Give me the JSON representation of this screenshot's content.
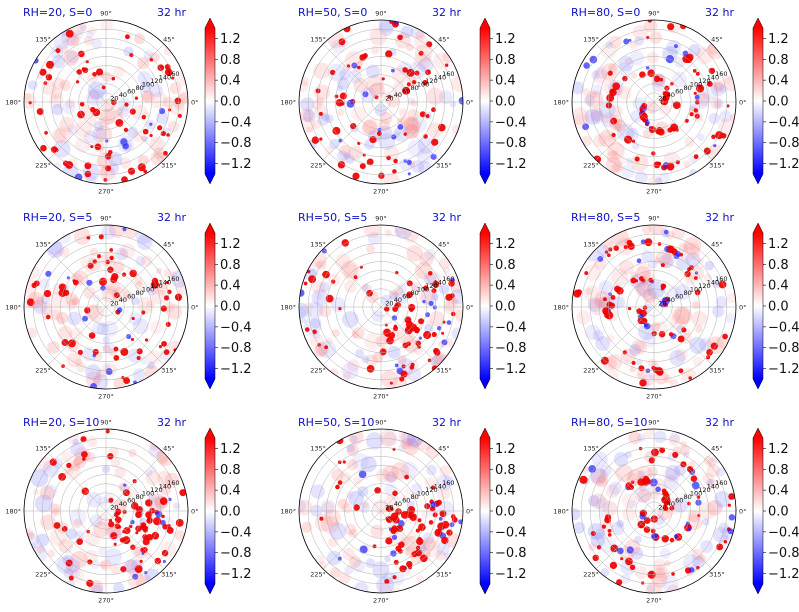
{
  "chart_data": {
    "type": "polar heatmap",
    "colormap": "bwr",
    "colors": {
      "positive": "#ff0000",
      "neutral": "#ffffff",
      "negative": "#0000ff",
      "title": "#1010c8"
    },
    "grid": true,
    "angle_tick_labels": [
      "0°",
      "45°",
      "90°",
      "135°",
      "180°",
      "225°",
      "270°",
      "315°"
    ],
    "radial_tick_labels": [
      "20",
      "40",
      "60",
      "80",
      "100",
      "120",
      "140",
      "160"
    ],
    "radial_range": [
      0,
      180
    ],
    "colorbar": {
      "ticks": [
        "1.2",
        "0.8",
        "0.4",
        "0.0",
        "−0.4",
        "−0.8",
        "−1.2"
      ],
      "range": [
        -1.4,
        1.4
      ],
      "extend": "both"
    },
    "panels": [
      {
        "title": "RH=20, S=0",
        "time": "32 hr",
        "pattern": "scattered"
      },
      {
        "title": "RH=50, S=0",
        "time": "32 hr",
        "pattern": "scattered"
      },
      {
        "title": "RH=80, S=0",
        "time": "32 hr",
        "pattern": "spiral"
      },
      {
        "title": "RH=20, S=5",
        "time": "32 hr",
        "pattern": "scattered"
      },
      {
        "title": "RH=50, S=5",
        "time": "32 hr",
        "pattern": "sheared"
      },
      {
        "title": "RH=80, S=5",
        "time": "32 hr",
        "pattern": "spiral"
      },
      {
        "title": "RH=20, S=10",
        "time": "32 hr",
        "pattern": "sheared"
      },
      {
        "title": "RH=50, S=10",
        "time": "32 hr",
        "pattern": "sheared"
      },
      {
        "title": "RH=80, S=10",
        "time": "32 hr",
        "pattern": "spiral"
      }
    ]
  }
}
